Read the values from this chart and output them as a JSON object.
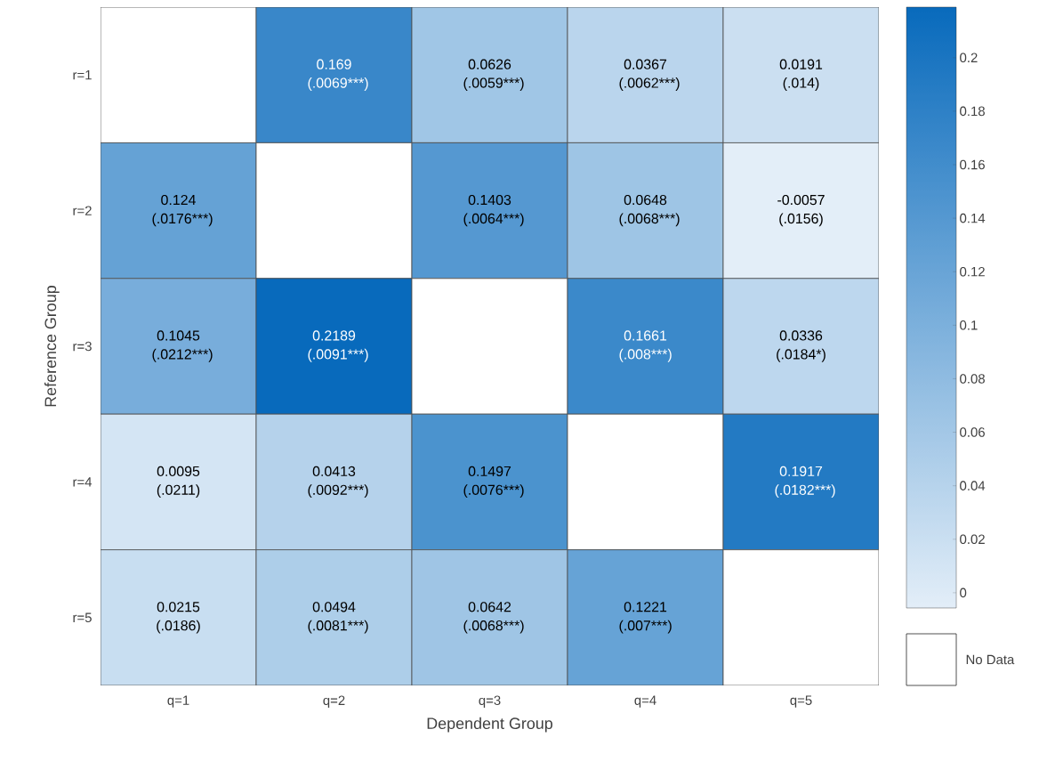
{
  "chart_data": {
    "type": "heatmap",
    "xlabel": "Dependent Group",
    "ylabel": "Reference Group",
    "categories": [
      "q=1",
      "q=2",
      "q=3",
      "q=4",
      "q=5"
    ],
    "y_categories": [
      "r=1",
      "r=2",
      "r=3",
      "r=4",
      "r=5"
    ],
    "cells": [
      [
        null,
        0.169,
        0.0626,
        0.0367,
        0.0191
      ],
      [
        0.124,
        null,
        0.1403,
        0.0648,
        -0.0057
      ],
      [
        0.1045,
        0.2189,
        null,
        0.1661,
        0.0336
      ],
      [
        0.0095,
        0.0413,
        0.1497,
        null,
        0.1917
      ],
      [
        0.0215,
        0.0494,
        0.0642,
        0.1221,
        null
      ]
    ],
    "cell_labels": [
      [
        null,
        "0.169 (.0069***)",
        "0.0626 (.0059***)",
        "0.0367 (.0062***)",
        "0.0191 (.014)"
      ],
      [
        "0.124 (.0176***)",
        null,
        "0.1403 (.0064***)",
        "0.0648 (.0068***)",
        "-0.0057 (.0156)"
      ],
      [
        "0.1045 (.0212***)",
        "0.2189 (.0091***)",
        null,
        "0.1661 (.008***)",
        "0.0336 (.0184*)"
      ],
      [
        "0.0095 (.0211)",
        "0.0413 (.0092***)",
        "0.1497 (.0076***)",
        null,
        "0.1917 (.0182***)"
      ],
      [
        "0.0215 (.0186)",
        "0.0494 (.0081***)",
        "0.0642 (.0068***)",
        "0.1221 (.007***)",
        null
      ]
    ],
    "clim": [
      -0.0057,
      0.2189
    ],
    "cticks": [
      0,
      0.02,
      0.04,
      0.06,
      0.08,
      0.1,
      0.12,
      0.14,
      0.16,
      0.18,
      0.2
    ],
    "annotations": [
      "No Data"
    ]
  }
}
